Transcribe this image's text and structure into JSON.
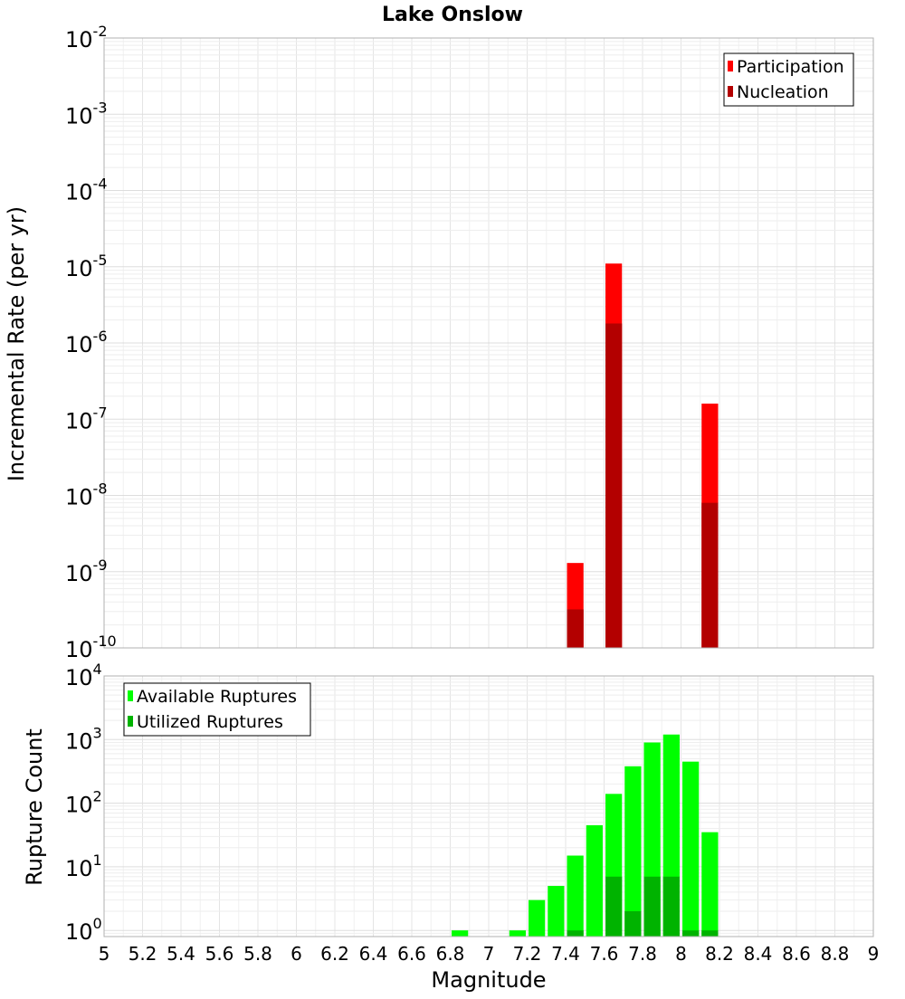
{
  "chart_data": [
    {
      "type": "bar",
      "title": "Lake Onslow",
      "xlabel": "",
      "ylabel": "Incremental Rate (per yr)",
      "xlim": [
        5,
        9
      ],
      "ylim": [
        1e-10,
        0.01
      ],
      "yscale": "log",
      "ytick_labels": [
        {
          "base": "10",
          "exp": "-10"
        },
        {
          "base": "10",
          "exp": "-9"
        },
        {
          "base": "10",
          "exp": "-8"
        },
        {
          "base": "10",
          "exp": "-7"
        },
        {
          "base": "10",
          "exp": "-6"
        },
        {
          "base": "10",
          "exp": "-5"
        },
        {
          "base": "10",
          "exp": "-4"
        },
        {
          "base": "10",
          "exp": "-3"
        },
        {
          "base": "10",
          "exp": "-2"
        }
      ],
      "grid": true,
      "legend_position": "top-right",
      "series": [
        {
          "name": "Participation",
          "color": "#ff0000",
          "x": [
            7.45,
            7.65,
            8.15
          ],
          "values": [
            1.3e-09,
            1.1e-05,
            1.6e-07
          ]
        },
        {
          "name": "Nucleation",
          "color": "#b30000",
          "x": [
            7.45,
            7.65,
            8.15
          ],
          "values": [
            3.2e-10,
            1.8e-06,
            8e-09
          ]
        }
      ]
    },
    {
      "type": "bar",
      "title": "",
      "xlabel": "Magnitude",
      "ylabel": "Rupture Count",
      "xlim": [
        5,
        9
      ],
      "ylim": [
        0.8,
        10000
      ],
      "yscale": "log",
      "ytick_labels": [
        {
          "base": "10",
          "exp": "0"
        },
        {
          "base": "10",
          "exp": "1"
        },
        {
          "base": "10",
          "exp": "2"
        },
        {
          "base": "10",
          "exp": "3"
        },
        {
          "base": "10",
          "exp": "4"
        }
      ],
      "xtick_labels": [
        "5",
        "5.2",
        "5.4",
        "5.6",
        "5.8",
        "6",
        "6.2",
        "6.4",
        "6.6",
        "6.8",
        "7",
        "7.2",
        "7.4",
        "7.6",
        "7.8",
        "8",
        "8.2",
        "8.4",
        "8.6",
        "8.8",
        "9"
      ],
      "grid": true,
      "legend_position": "top-left",
      "series": [
        {
          "name": "Available Ruptures",
          "color": "#00ff00",
          "x": [
            6.85,
            7.15,
            7.25,
            7.35,
            7.45,
            7.55,
            7.65,
            7.75,
            7.85,
            7.95,
            8.05,
            8.15
          ],
          "values": [
            1,
            1,
            3,
            5,
            15,
            45,
            140,
            380,
            900,
            1200,
            450,
            35
          ]
        },
        {
          "name": "Utilized Ruptures",
          "color": "#00b300",
          "x": [
            7.45,
            7.65,
            7.75,
            7.85,
            7.95,
            8.05,
            8.15
          ],
          "values": [
            1,
            7,
            2,
            7,
            7,
            1,
            1
          ]
        }
      ]
    }
  ]
}
